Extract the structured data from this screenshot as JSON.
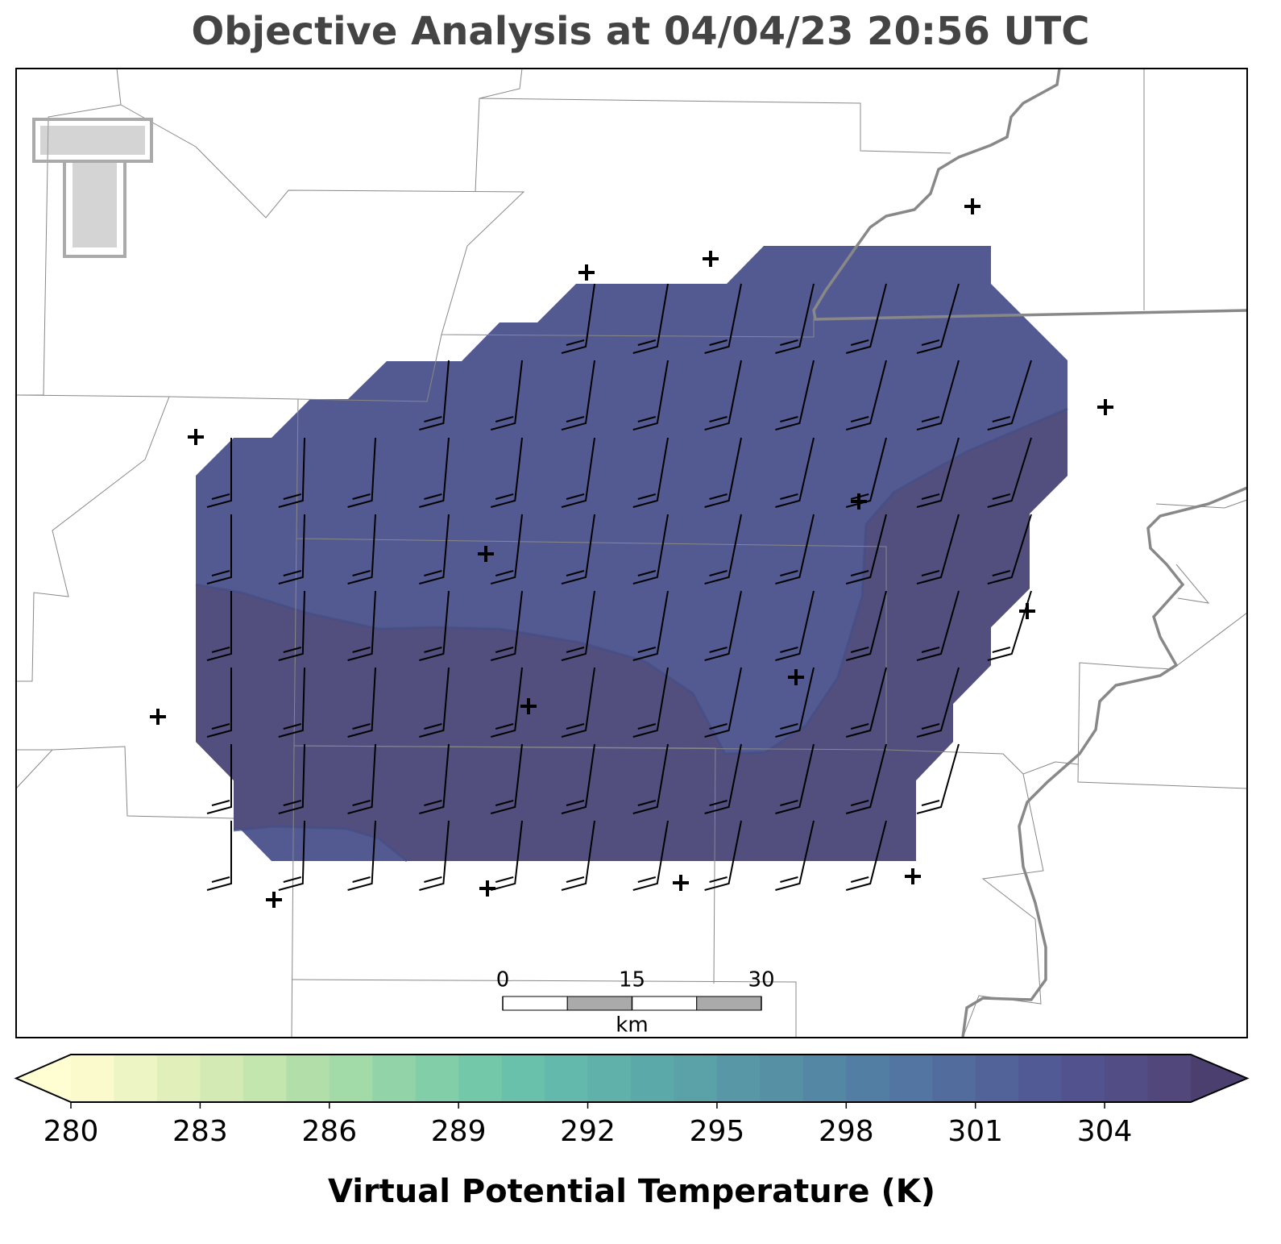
{
  "title": "Objective Analysis at 04/04/23 20:56 UTC",
  "colorbar": {
    "label": "Virtual Potential Temperature (K)",
    "clim": [
      280,
      306
    ],
    "ticks": [
      280,
      283,
      286,
      289,
      292,
      295,
      298,
      301,
      304
    ],
    "colors": [
      "#fafacd",
      "#eef5c4",
      "#e1f0bb",
      "#d3eab4",
      "#c3e5ae",
      "#b2dfa9",
      "#a2daa8",
      "#92d4a8",
      "#82cea9",
      "#74c8aa",
      "#6ac1ab",
      "#63b9ab",
      "#5fb1aa",
      "#5ca9a9",
      "#5aa1a8",
      "#5898a6",
      "#5690a5",
      "#5487a4",
      "#537ea3",
      "#5275a1",
      "#526c9e",
      "#52639a",
      "#525a95",
      "#52538e",
      "#524d85",
      "#51477a"
    ],
    "extend_colors": [
      "#fffdd2",
      "#4b3f70"
    ]
  },
  "scale_bar": {
    "lim": [
      0,
      30
    ],
    "ticks": [
      0,
      15,
      30
    ],
    "unit": "km"
  }
}
